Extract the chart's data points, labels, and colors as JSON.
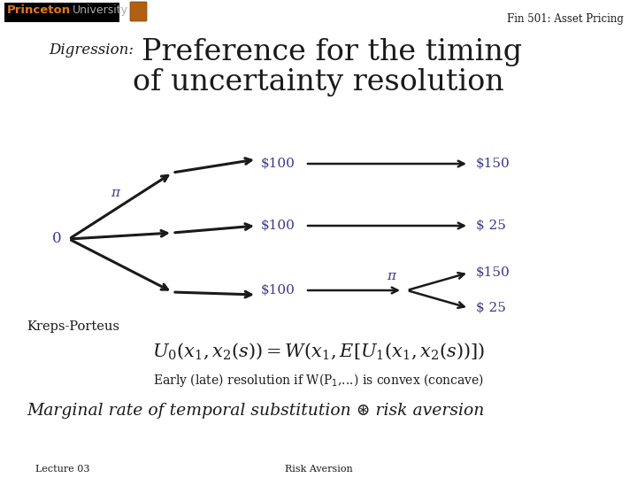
{
  "bg_color": "#ffffff",
  "header_text": "Fin 501: Asset Pricing",
  "title_digression": "Digression: ",
  "title_main1": "Preference for the timing",
  "title_main2": "of uncertainty resolution",
  "node0_label": "0",
  "pi_label": "π",
  "dollar100": "$100",
  "dollar150": "$150",
  "dollar25": "$ 25",
  "kreps_porteus": "Kreps-Porteus",
  "formula": "$U_0(x_1, x_2(s)) = W(x_1, E[U_1(x_1, x_2(s))])$",
  "early_late": "Early (late) resolution if W(P",
  "early_late2": ",...) is convex (concave)",
  "mrts_pre": "Marginal rate of temporal substitution ",
  "mrts_post": " risk aversion",
  "lecture": "Lecture 03",
  "risk_aversion": "Risk Aversion",
  "blue_color": "#3a3a8c",
  "black_color": "#1a1a1a",
  "orange_color": "#e07820"
}
